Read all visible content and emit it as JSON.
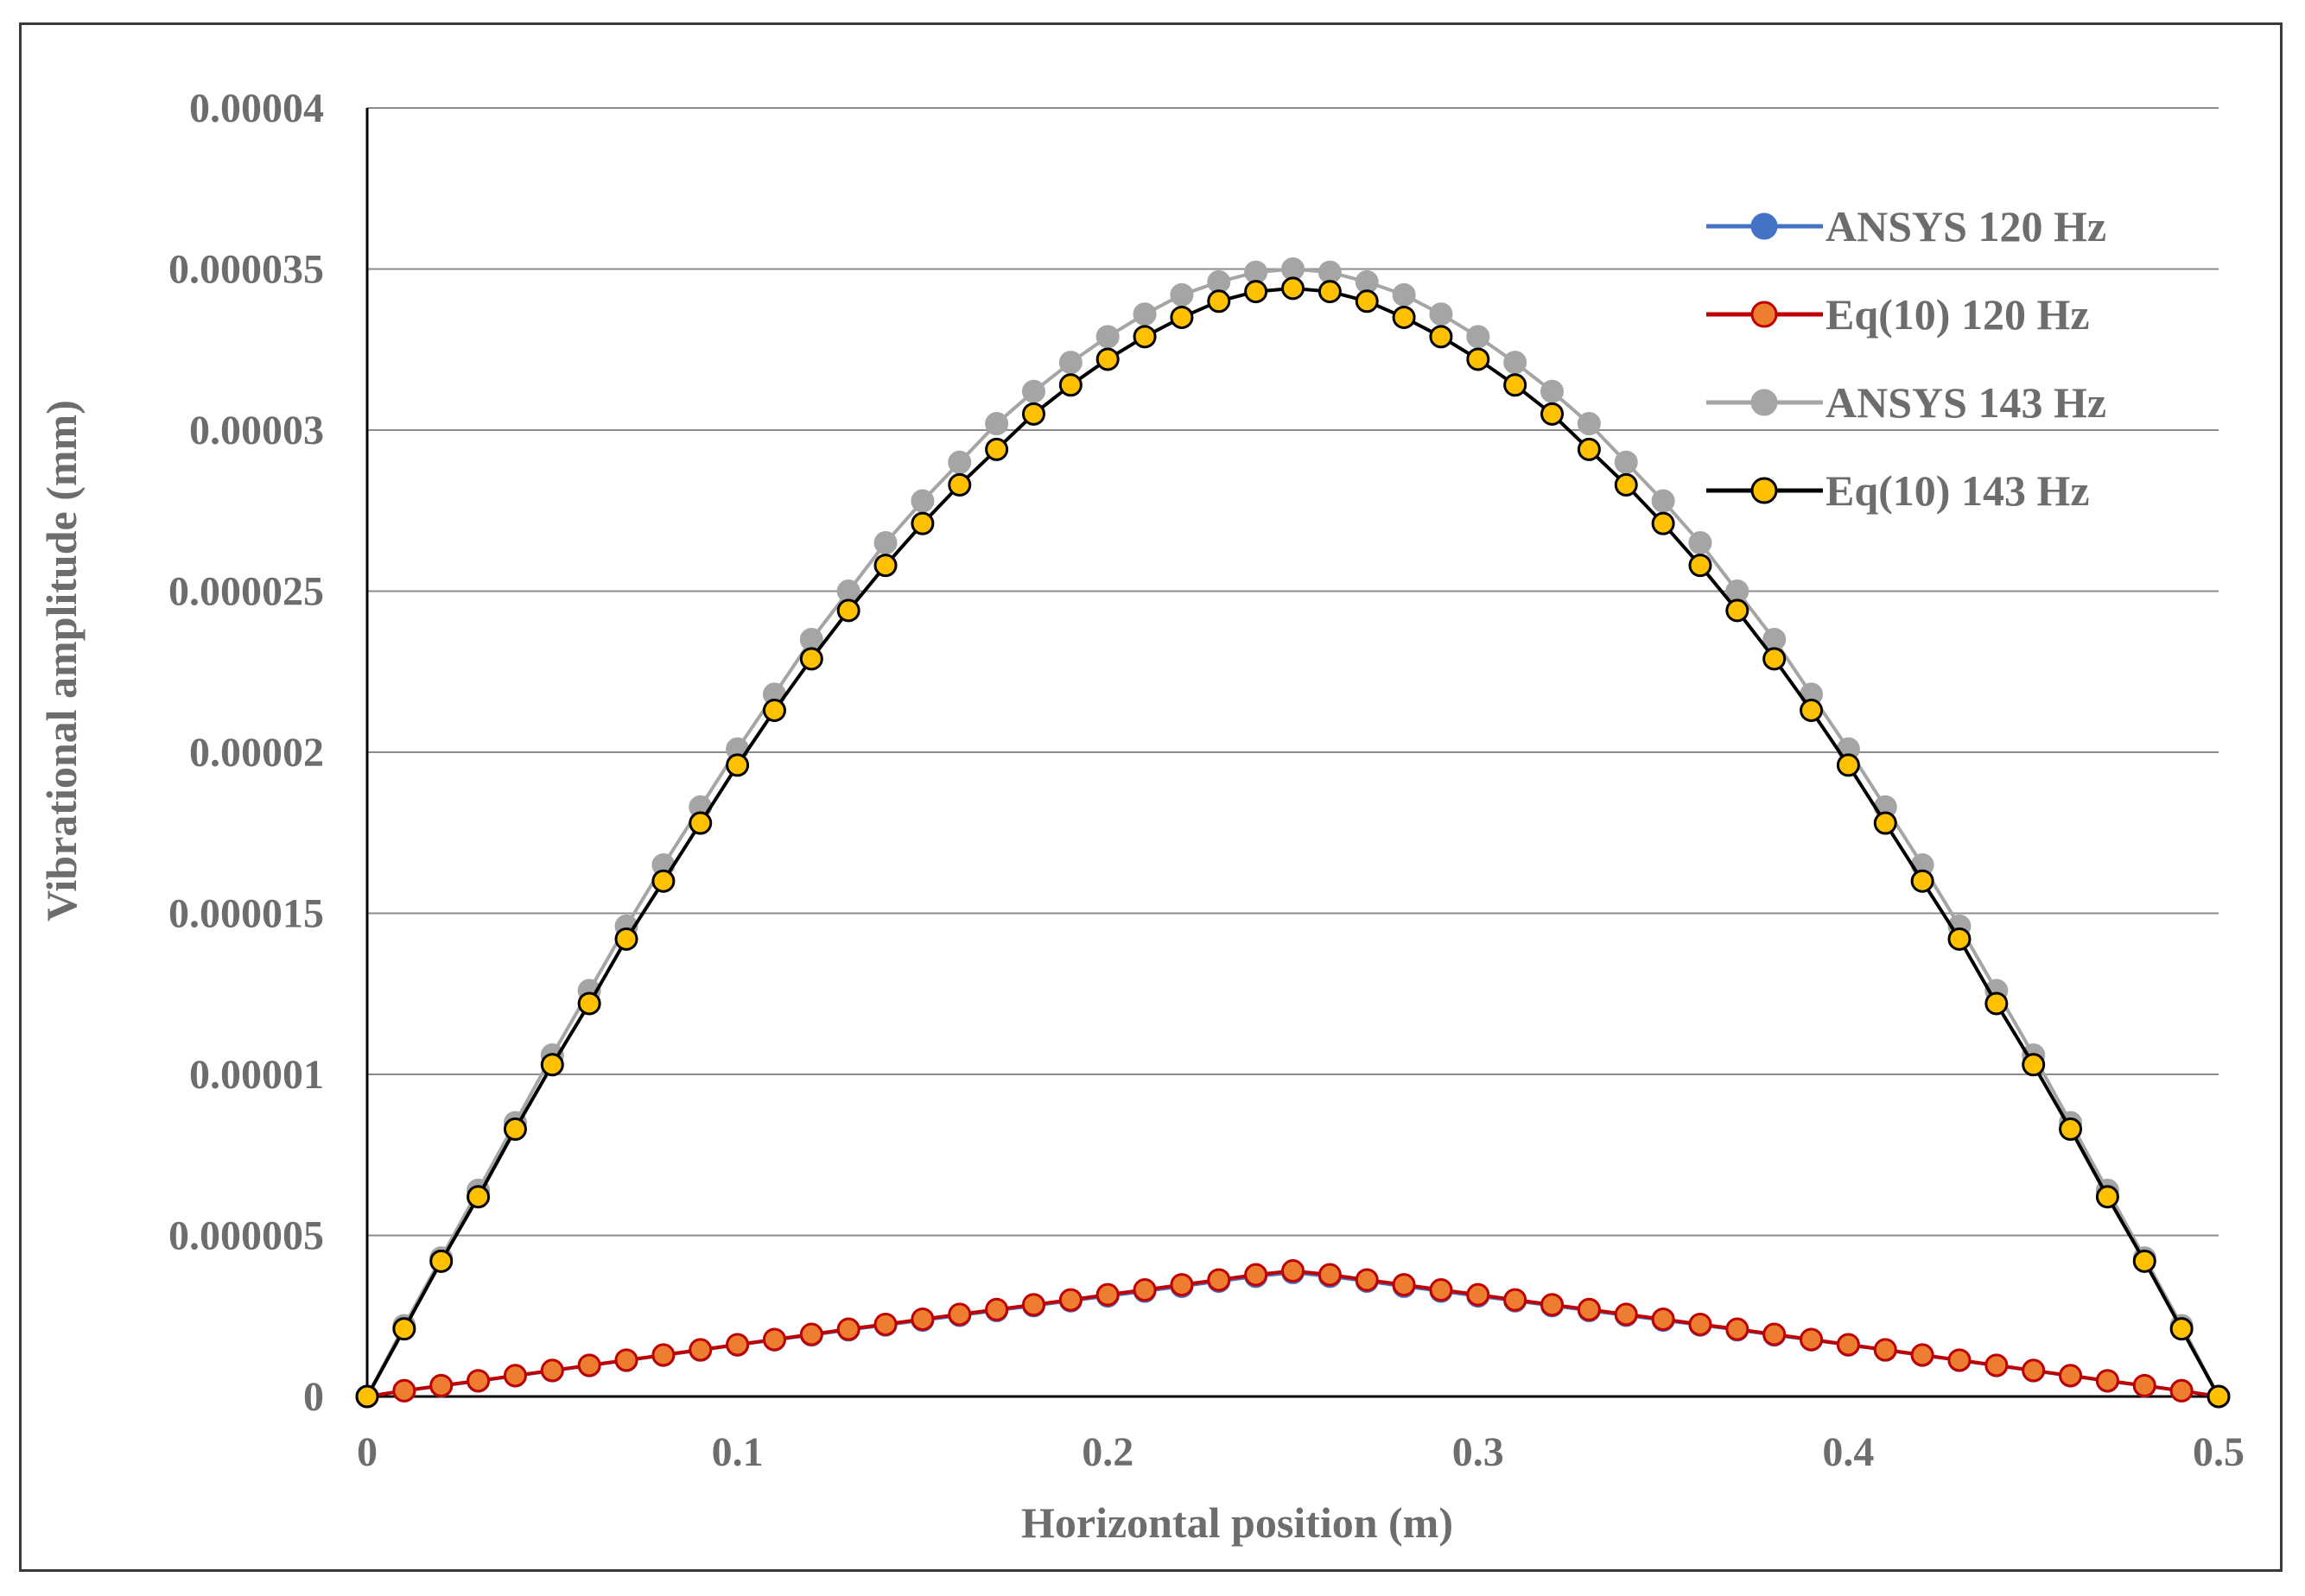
{
  "chart_data": {
    "type": "line",
    "title": "",
    "xlabel": "Horizontal position (m)",
    "ylabel": "Vibrational amplitude (mm)",
    "xlim": [
      0,
      0.5
    ],
    "ylim": [
      0,
      4e-05
    ],
    "x_ticks": [
      {
        "value": 0,
        "label": "0"
      },
      {
        "value": 0.1,
        "label": "0.1"
      },
      {
        "value": 0.2,
        "label": "0.2"
      },
      {
        "value": 0.3,
        "label": "0.3"
      },
      {
        "value": 0.4,
        "label": "0.4"
      },
      {
        "value": 0.5,
        "label": "0.5"
      }
    ],
    "y_ticks": [
      {
        "value": 0,
        "label": "0"
      },
      {
        "value": 5e-06,
        "label": "0.000005"
      },
      {
        "value": 1e-05,
        "label": "0.00001"
      },
      {
        "value": 1.5e-05,
        "label": "0.000015"
      },
      {
        "value": 2e-05,
        "label": "0.00002"
      },
      {
        "value": 2.5e-05,
        "label": "0.000025"
      },
      {
        "value": 3e-05,
        "label": "0.00003"
      },
      {
        "value": 3.5e-05,
        "label": "0.000035"
      },
      {
        "value": 4e-05,
        "label": "0.00004"
      }
    ],
    "grid": "horizontal",
    "legend_position": "top-right",
    "x": [
      0,
      0.01,
      0.02,
      0.03,
      0.04,
      0.05,
      0.06,
      0.07,
      0.08,
      0.09,
      0.1,
      0.11,
      0.12,
      0.13,
      0.14,
      0.15,
      0.16,
      0.17,
      0.18,
      0.19,
      0.2,
      0.21,
      0.22,
      0.23,
      0.24,
      0.25,
      0.26,
      0.27,
      0.28,
      0.29,
      0.3,
      0.31,
      0.32,
      0.33,
      0.34,
      0.35,
      0.36,
      0.37,
      0.38,
      0.39,
      0.4,
      0.41,
      0.42,
      0.43,
      0.44,
      0.45,
      0.46,
      0.47,
      0.48,
      0.49,
      0.5
    ],
    "series": [
      {
        "name": "ANSYS 120 Hz",
        "line_color": "#4472c4",
        "marker_fill": "#4472c4",
        "marker_edge": "#4472c4",
        "values": [
          0,
          1.8e-07,
          3.3e-07,
          4.8e-07,
          6.4e-07,
          8e-07,
          9.6e-07,
          1.12e-06,
          1.28e-06,
          1.44e-06,
          1.6e-06,
          1.76e-06,
          1.91e-06,
          2.07e-06,
          2.22e-06,
          2.37e-06,
          2.52e-06,
          2.67e-06,
          2.82e-06,
          2.97e-06,
          3.12e-06,
          3.27e-06,
          3.42e-06,
          3.58e-06,
          3.73e-06,
          3.85e-06,
          3.73e-06,
          3.58e-06,
          3.42e-06,
          3.27e-06,
          3.12e-06,
          2.97e-06,
          2.82e-06,
          2.67e-06,
          2.52e-06,
          2.37e-06,
          2.22e-06,
          2.07e-06,
          1.91e-06,
          1.76e-06,
          1.6e-06,
          1.44e-06,
          1.28e-06,
          1.12e-06,
          9.6e-07,
          8e-07,
          6.4e-07,
          4.8e-07,
          3.3e-07,
          1.8e-07,
          0
        ]
      },
      {
        "name": "Eq(10) 120 Hz",
        "line_color": "#c00000",
        "marker_fill": "#ed7d31",
        "marker_edge": "#c00000",
        "values": [
          0,
          1.8e-07,
          3.4e-07,
          4.9e-07,
          6.5e-07,
          8.1e-07,
          9.7e-07,
          1.13e-06,
          1.29e-06,
          1.45e-06,
          1.61e-06,
          1.77e-06,
          1.93e-06,
          2.09e-06,
          2.24e-06,
          2.4e-06,
          2.55e-06,
          2.7e-06,
          2.85e-06,
          3e-06,
          3.16e-06,
          3.31e-06,
          3.47e-06,
          3.62e-06,
          3.78e-06,
          3.9e-06,
          3.78e-06,
          3.62e-06,
          3.47e-06,
          3.31e-06,
          3.16e-06,
          3e-06,
          2.85e-06,
          2.7e-06,
          2.55e-06,
          2.4e-06,
          2.24e-06,
          2.09e-06,
          1.93e-06,
          1.77e-06,
          1.61e-06,
          1.45e-06,
          1.29e-06,
          1.13e-06,
          9.7e-07,
          8.1e-07,
          6.5e-07,
          4.9e-07,
          3.4e-07,
          1.8e-07,
          0
        ]
      },
      {
        "name": "ANSYS 143 Hz",
        "line_color": "#a5a5a5",
        "marker_fill": "#a5a5a5",
        "marker_edge": "#a5a5a5",
        "values": [
          0,
          2.2e-06,
          4.3e-06,
          6.4e-06,
          8.5e-06,
          1.06e-05,
          1.26e-05,
          1.46e-05,
          1.65e-05,
          1.83e-05,
          2.01e-05,
          2.18e-05,
          2.35e-05,
          2.5e-05,
          2.65e-05,
          2.78e-05,
          2.9e-05,
          3.02e-05,
          3.12e-05,
          3.21e-05,
          3.29e-05,
          3.36e-05,
          3.42e-05,
          3.46e-05,
          3.49e-05,
          3.5e-05,
          3.49e-05,
          3.46e-05,
          3.42e-05,
          3.36e-05,
          3.29e-05,
          3.21e-05,
          3.12e-05,
          3.02e-05,
          2.9e-05,
          2.78e-05,
          2.65e-05,
          2.5e-05,
          2.35e-05,
          2.18e-05,
          2.01e-05,
          1.83e-05,
          1.65e-05,
          1.46e-05,
          1.26e-05,
          1.06e-05,
          8.5e-06,
          6.4e-06,
          4.3e-06,
          2.2e-06,
          0
        ]
      },
      {
        "name": "Eq(10) 143 Hz",
        "line_color": "#000000",
        "marker_fill": "#ffc000",
        "marker_edge": "#000000",
        "values": [
          0,
          2.1e-06,
          4.2e-06,
          6.2e-06,
          8.3e-06,
          1.03e-05,
          1.22e-05,
          1.42e-05,
          1.6e-05,
          1.78e-05,
          1.96e-05,
          2.13e-05,
          2.29e-05,
          2.44e-05,
          2.58e-05,
          2.71e-05,
          2.83e-05,
          2.94e-05,
          3.05e-05,
          3.14e-05,
          3.22e-05,
          3.29e-05,
          3.35e-05,
          3.4e-05,
          3.43e-05,
          3.44e-05,
          3.43e-05,
          3.4e-05,
          3.35e-05,
          3.29e-05,
          3.22e-05,
          3.14e-05,
          3.05e-05,
          2.94e-05,
          2.83e-05,
          2.71e-05,
          2.58e-05,
          2.44e-05,
          2.29e-05,
          2.13e-05,
          1.96e-05,
          1.78e-05,
          1.6e-05,
          1.42e-05,
          1.22e-05,
          1.03e-05,
          8.3e-06,
          6.2e-06,
          4.2e-06,
          2.1e-06,
          0
        ]
      }
    ]
  }
}
